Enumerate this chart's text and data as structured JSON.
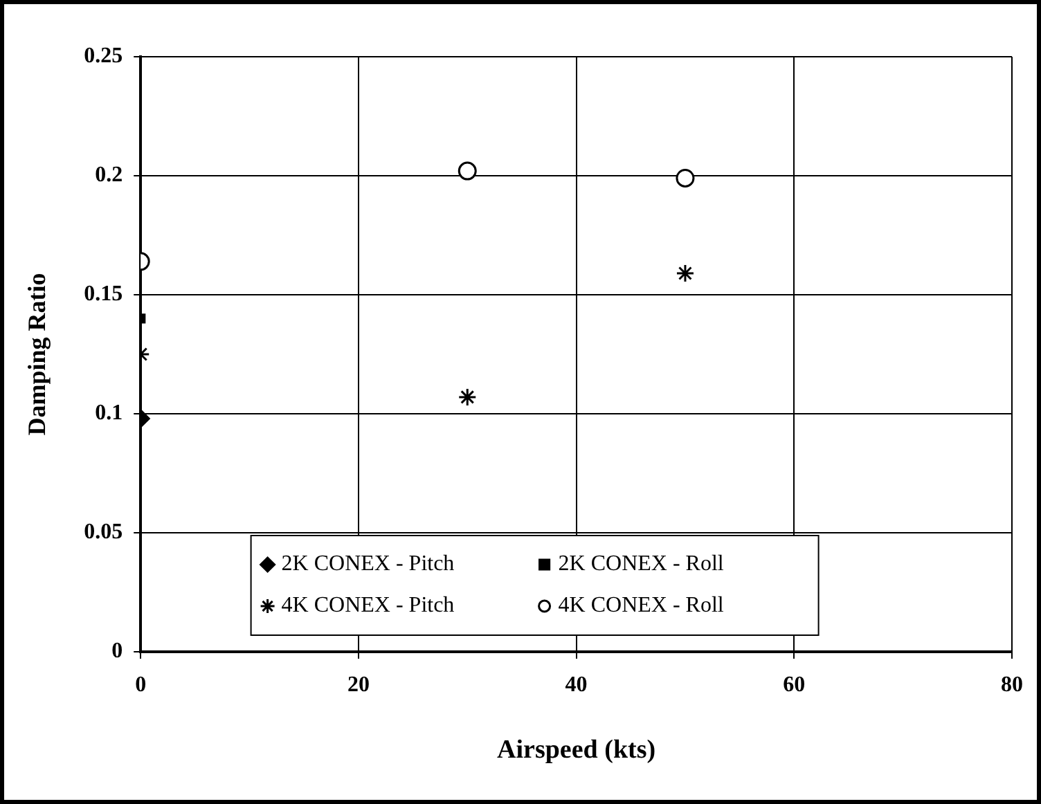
{
  "chart_data": {
    "type": "scatter",
    "xlabel": "Airspeed (kts)",
    "ylabel": "Damping Ratio",
    "xlim": [
      0,
      80
    ],
    "xticks": [
      0,
      20,
      40,
      60,
      80
    ],
    "ylim": [
      0,
      0.25
    ],
    "yticks": [
      0,
      0.05,
      0.1,
      0.15,
      0.2,
      0.25
    ],
    "grid": true,
    "legend": "bottom",
    "series": [
      {
        "name": "2K CONEX - Pitch",
        "color": "#000000",
        "marker": "diamond",
        "x": [
          0
        ],
        "values": [
          0.098
        ]
      },
      {
        "name": "2K CONEX - Roll",
        "color": "#000000",
        "marker": "square",
        "x": [
          0
        ],
        "values": [
          0.14
        ]
      },
      {
        "name": "4K CONEX - Pitch",
        "color": "#000000",
        "marker": "cross",
        "x": [
          0,
          30,
          50
        ],
        "values": [
          0.125,
          0.107,
          0.159
        ]
      },
      {
        "name": "4K CONEX - Roll",
        "color": "#000000",
        "marker": "circle",
        "x": [
          0,
          30,
          50
        ],
        "values": [
          0.164,
          0.202,
          0.199
        ]
      }
    ]
  }
}
